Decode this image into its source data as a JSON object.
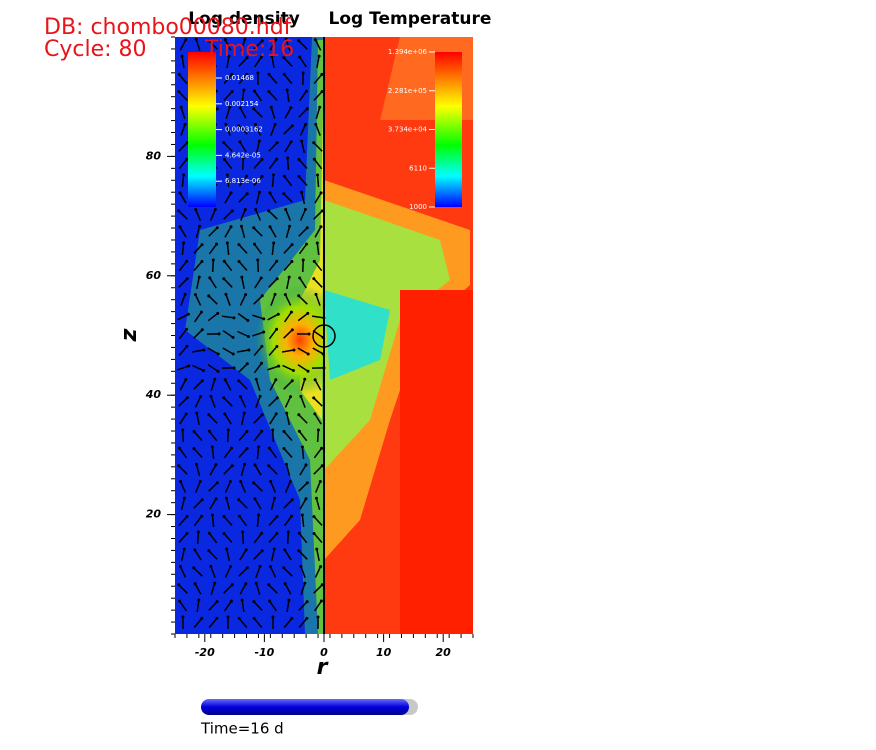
{
  "header": {
    "db": "DB: chombo00080.hdf",
    "cycle": "Cycle: 80",
    "time": "Time:16"
  },
  "plot": {
    "density_title": "Log density",
    "temperature_title": "Log Temperature",
    "xlabel": "r",
    "ylabel": "z",
    "xlim": [
      -25,
      25
    ],
    "ylim": [
      0,
      100
    ],
    "xticks": [
      -20,
      -10,
      0,
      10,
      20
    ],
    "yticks": [
      20,
      40,
      60,
      80
    ]
  },
  "density_colorbar": {
    "labels": [
      "0.01468",
      "0.002154",
      "0.0003162",
      "4.642e-05",
      "6.813e-06"
    ]
  },
  "temperature_colorbar": {
    "labels": [
      "1.394e+06",
      "2.281e+05",
      "3.734e+04",
      "6110",
      "1000"
    ]
  },
  "slider": {
    "label": "Time=16 d"
  }
}
